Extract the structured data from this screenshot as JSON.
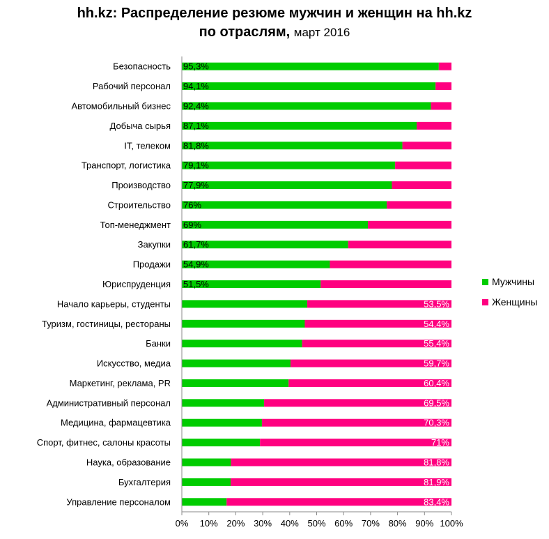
{
  "chart_data": {
    "type": "bar",
    "orientation": "horizontal",
    "stacked": "percent",
    "title_main": "hh.kz: Распределение резюме мужчин и женщин на hh.kz",
    "title_line2": "по отраслям,",
    "title_sub": "март 2016",
    "xlim": [
      0,
      100
    ],
    "x_ticks": [
      "0%",
      "10%",
      "20%",
      "30%",
      "40%",
      "50%",
      "60%",
      "70%",
      "80%",
      "90%",
      "100%"
    ],
    "grid": false,
    "legend_position": "right",
    "categories": [
      "Безопасность",
      "Рабочий персонал",
      "Автомобильный бизнес",
      "Добыча сырья",
      "IT, телеком",
      "Транспорт, логистика",
      "Производство",
      "Строительство",
      "Топ-менеджмент",
      "Закупки",
      "Продажи",
      "Юриспруденция",
      "Начало карьеры, студенты",
      "Туризм, гостиницы, рестораны",
      "Банки",
      "Искусство, медиа",
      "Маркетинг, реклама, PR",
      "Административный персонал",
      "Медицина, фармацевтика",
      "Спорт, фитнес, салоны красоты",
      "Наука, образование",
      "Бухгалтерия",
      "Управление персоналом"
    ],
    "series": [
      {
        "name": "Мужчины",
        "color": "#00cc00",
        "values": [
          95.3,
          94.1,
          92.4,
          87.1,
          81.8,
          79.1,
          77.9,
          76,
          69,
          61.7,
          54.9,
          51.5,
          46.5,
          45.6,
          44.6,
          40.3,
          39.6,
          30.5,
          29.7,
          29,
          18.2,
          18.1,
          16.6
        ]
      },
      {
        "name": "Женщины",
        "color": "#ff0080",
        "values": [
          4.7,
          5.9,
          7.6,
          12.9,
          18.2,
          20.9,
          22.1,
          24,
          31,
          38.3,
          45.1,
          48.5,
          53.5,
          54.4,
          55.4,
          59.7,
          60.4,
          69.5,
          70.3,
          71,
          81.8,
          81.9,
          83.4
        ]
      }
    ],
    "data_labels": [
      "95,3%",
      "94,1%",
      "92,4%",
      "87,1%",
      "81,8%",
      "79,1%",
      "77,9%",
      "76%",
      "69%",
      "61,7%",
      "54,9%",
      "51,5%",
      "53,5%",
      "54,4%",
      "55,4%",
      "59,7%",
      "60,4%",
      "69,5%",
      "70,3%",
      "71%",
      "81,8%",
      "81,9%",
      "83,4%"
    ],
    "data_label_series": [
      0,
      0,
      0,
      0,
      0,
      0,
      0,
      0,
      0,
      0,
      0,
      0,
      1,
      1,
      1,
      1,
      1,
      1,
      1,
      1,
      1,
      1,
      1
    ],
    "data_label_colors": [
      "#000000",
      "#ffffff"
    ]
  }
}
